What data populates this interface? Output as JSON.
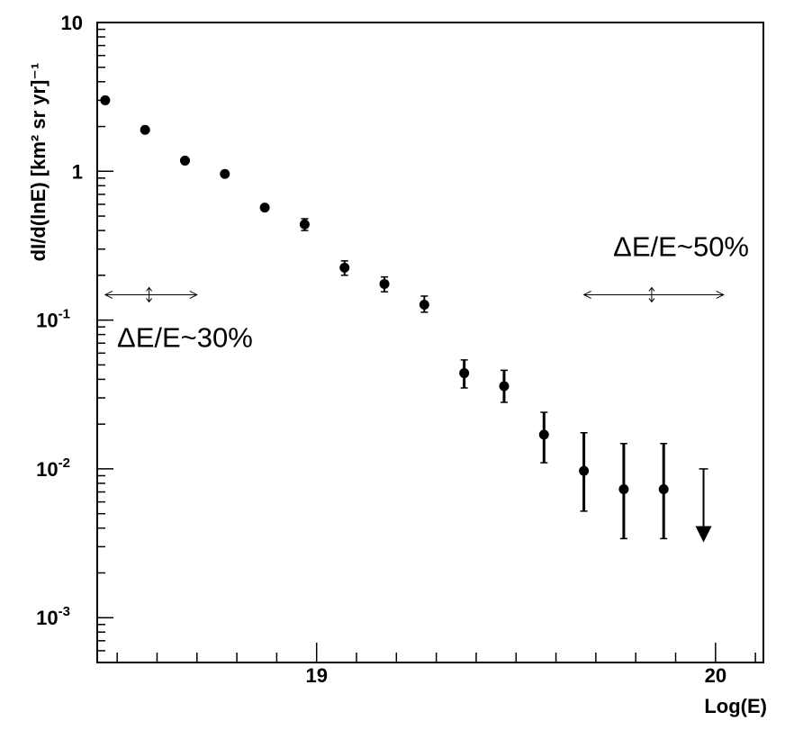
{
  "chart_data": {
    "type": "scatter",
    "xlabel": "Log(E)",
    "ylabel": "dI/d(lnE) [km² sr yr]⁻¹",
    "y_scale": "log",
    "xlim": [
      18.45,
      20.12
    ],
    "ylim": [
      0.0005,
      10
    ],
    "grid": false,
    "x_tick_labels": [
      {
        "value": 19,
        "label": "19"
      },
      {
        "value": 20,
        "label": "20"
      }
    ],
    "y_tick_labels": [
      {
        "value": 10,
        "label": "10"
      },
      {
        "value": 1,
        "label": "1"
      },
      {
        "value": 0.1,
        "label": "10",
        "exp": "-1"
      },
      {
        "value": 0.01,
        "label": "10",
        "exp": "-2"
      },
      {
        "value": 0.001,
        "label": "10",
        "exp": "-3"
      }
    ],
    "series": [
      {
        "points": [
          {
            "x": 18.47,
            "y": 3.0
          },
          {
            "x": 18.57,
            "y": 1.9
          },
          {
            "x": 18.67,
            "y": 1.18
          },
          {
            "x": 18.77,
            "y": 0.96
          },
          {
            "x": 18.87,
            "y": 0.57
          },
          {
            "x": 18.97,
            "y": 0.44,
            "err_low": 0.4,
            "err_high": 0.48
          },
          {
            "x": 19.07,
            "y": 0.225,
            "err_low": 0.2,
            "err_high": 0.25
          },
          {
            "x": 19.17,
            "y": 0.175,
            "err_low": 0.155,
            "err_high": 0.195
          },
          {
            "x": 19.27,
            "y": 0.127,
            "err_low": 0.113,
            "err_high": 0.145
          },
          {
            "x": 19.37,
            "y": 0.044,
            "err_low": 0.035,
            "err_high": 0.054
          },
          {
            "x": 19.47,
            "y": 0.036,
            "err_low": 0.028,
            "err_high": 0.046
          },
          {
            "x": 19.57,
            "y": 0.017,
            "err_low": 0.011,
            "err_high": 0.024
          },
          {
            "x": 19.67,
            "y": 0.0097,
            "err_low": 0.0052,
            "err_high": 0.0175
          },
          {
            "x": 19.77,
            "y": 0.0073,
            "err_low": 0.0034,
            "err_high": 0.0148
          },
          {
            "x": 19.87,
            "y": 0.0073,
            "err_low": 0.0034,
            "err_high": 0.0148
          }
        ],
        "upper_limits": [
          {
            "x": 19.97,
            "y": 0.01,
            "arrow_to": 0.0033
          }
        ]
      }
    ],
    "annotations": [
      {
        "text": "ΔE/E~30%",
        "x_range": [
          18.47,
          18.7
        ],
        "x_center": 18.58,
        "y": 0.148
      },
      {
        "text": "ΔE/E~50%",
        "x_range": [
          19.67,
          20.02
        ],
        "x_center": 19.84,
        "y": 0.148
      }
    ]
  }
}
